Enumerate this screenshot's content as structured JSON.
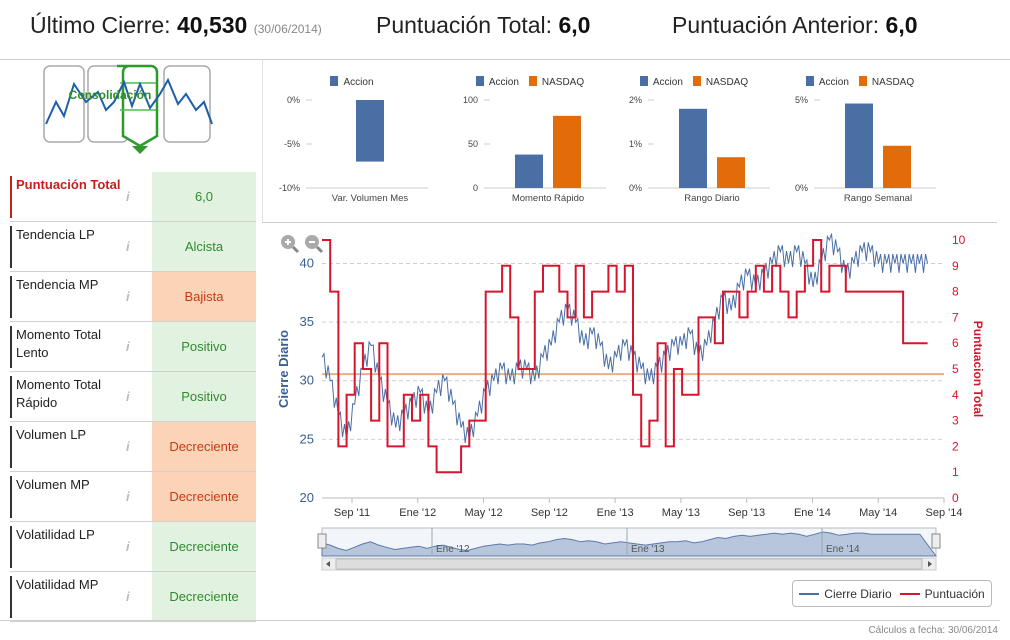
{
  "header": {
    "last_close_label": "Último Cierre:",
    "last_close_value": "40,530",
    "last_close_date": "(30/06/2014)",
    "total_score_label": "Puntuación Total:",
    "total_score_value": "6,0",
    "previous_score_label": "Puntuación Anterior:",
    "previous_score_value": "6,0"
  },
  "pattern": {
    "label": "Consolidación"
  },
  "info_icon": "i",
  "scores": [
    {
      "label": "Puntuación Total",
      "value": "6,0",
      "status": "green",
      "is_total": true
    },
    {
      "label": "Tendencia LP",
      "value": "Alcista",
      "status": "green"
    },
    {
      "label": "Tendencia MP",
      "value": "Bajista",
      "status": "orange"
    },
    {
      "label": "Momento Total Lento",
      "value": "Positivo",
      "status": "green"
    },
    {
      "label": "Momento Total Rápido",
      "value": "Positivo",
      "status": "green"
    },
    {
      "label": "Volumen LP",
      "value": "Decreciente",
      "status": "orange"
    },
    {
      "label": "Volumen MP",
      "value": "Decreciente",
      "status": "orange"
    },
    {
      "label": "Volatilidad LP",
      "value": "Decreciente",
      "status": "green"
    },
    {
      "label": "Volatilidad MP",
      "value": "Decreciente",
      "status": "green"
    }
  ],
  "colors": {
    "accion": "#4a6fa5",
    "nasdaq": "#e36c0a",
    "score": "#d6162c",
    "price": "#4a6fa5",
    "reference": "#e8b08a"
  },
  "chart_data": [
    {
      "type": "bar",
      "title": "",
      "xlabel": "Var. Volumen Mes",
      "legend": [
        "Accion"
      ],
      "categories": [
        "Accion"
      ],
      "values": [
        -7
      ],
      "ylim": [
        -10,
        0
      ],
      "yticks": [
        "0%",
        "-5%",
        "-10%"
      ]
    },
    {
      "type": "bar",
      "title": "",
      "xlabel": "Momento Rápido",
      "legend": [
        "Accion",
        "NASDAQ"
      ],
      "categories": [
        "Accion",
        "NASDAQ"
      ],
      "values": [
        38,
        82
      ],
      "ylim": [
        0,
        100
      ],
      "yticks": [
        "100",
        "50",
        "0"
      ]
    },
    {
      "type": "bar",
      "title": "",
      "xlabel": "Rango Diario",
      "legend": [
        "Accion",
        "NASDAQ"
      ],
      "categories": [
        "Accion",
        "NASDAQ"
      ],
      "values": [
        1.8,
        0.7
      ],
      "ylim": [
        0,
        2
      ],
      "yticks": [
        "2%",
        "1%",
        "0%"
      ]
    },
    {
      "type": "bar",
      "title": "",
      "xlabel": "Rango Semanal",
      "legend": [
        "Accion",
        "NASDAQ"
      ],
      "categories": [
        "Accion",
        "NASDAQ"
      ],
      "values": [
        4.8,
        2.4
      ],
      "ylim": [
        0,
        5
      ],
      "yticks": [
        "5%",
        "0%"
      ]
    },
    {
      "type": "line",
      "title": "",
      "ylabel": "Cierre Diario",
      "y2label": "Puntuacion Total",
      "x_ticks": [
        "Sep '11",
        "Ene '12",
        "May '12",
        "Sep '12",
        "Ene '13",
        "May '13",
        "Sep '13",
        "Ene '14",
        "May '14",
        "Sep '14"
      ],
      "navigator_ticks": [
        "Ene '12",
        "Ene '13",
        "Ene '14"
      ],
      "ylim": [
        20,
        42
      ],
      "yticks": [
        "20",
        "25",
        "30",
        "35",
        "40"
      ],
      "y2lim": [
        0,
        10
      ],
      "y2ticks": [
        "0",
        "1",
        "2",
        "3",
        "4",
        "5",
        "6",
        "7",
        "8",
        "9",
        "10"
      ],
      "reference_line": 4.8,
      "x_range_months": [
        0,
        38
      ],
      "series": [
        {
          "name": "Cierre Diario",
          "x": [
            0,
            0.5,
            1,
            1.5,
            2,
            2.5,
            3,
            3.5,
            4,
            4.5,
            5,
            5.5,
            6,
            6.5,
            7,
            7.5,
            8,
            8.5,
            9,
            9.5,
            10,
            10.5,
            11,
            11.5,
            12,
            12.5,
            13,
            13.5,
            14,
            14.5,
            15,
            15.5,
            16,
            16.5,
            17,
            17.5,
            18,
            18.5,
            19,
            19.5,
            20,
            20.5,
            21,
            21.5,
            22,
            22.5,
            23,
            23.5,
            24,
            24.5,
            25,
            25.5,
            26,
            26.5,
            27,
            27.5,
            28,
            28.5,
            29,
            29.5,
            30,
            30.5,
            31,
            31.5,
            32,
            32.5,
            33,
            33.5,
            34,
            34.5,
            35,
            35.5,
            36,
            36.5,
            37
          ],
          "values": [
            32,
            30,
            27,
            25,
            28,
            31,
            33,
            30,
            28,
            26,
            27,
            28,
            29,
            27,
            29,
            30,
            28,
            26,
            25,
            27,
            29,
            30,
            31,
            30,
            31,
            31,
            30,
            32,
            33,
            35,
            36,
            35,
            33,
            34,
            33,
            31,
            32,
            33,
            32,
            31,
            30,
            31,
            32,
            33,
            33,
            34,
            32,
            33,
            35,
            37,
            36,
            38,
            39,
            38,
            39,
            40,
            41,
            40,
            41,
            40,
            38,
            40,
            42,
            41,
            39,
            40,
            41,
            41,
            40,
            40,
            40,
            40,
            40,
            40,
            40
          ]
        },
        {
          "name": "Puntuación",
          "x": [
            0,
            0.5,
            1,
            1.5,
            2,
            2.5,
            3,
            3.5,
            4,
            4.5,
            5,
            5.5,
            6,
            6.5,
            7,
            7.5,
            8,
            8.5,
            9,
            9.5,
            10,
            10.5,
            11,
            11.5,
            12,
            12.5,
            13,
            13.5,
            14,
            14.5,
            15,
            15.5,
            16,
            16.5,
            17,
            17.5,
            18,
            18.5,
            19,
            19.5,
            20,
            20.5,
            21,
            21.5,
            22,
            22.5,
            23,
            23.5,
            24,
            24.5,
            25,
            25.5,
            26,
            26.5,
            27,
            27.5,
            28,
            28.5,
            29,
            29.5,
            30,
            30.5,
            31,
            31.5,
            32,
            32.5,
            33,
            33.5,
            34,
            34.5,
            35,
            35.5,
            36,
            36.5,
            37
          ],
          "values": [
            10,
            8,
            2,
            4,
            6,
            5,
            3,
            6,
            2,
            2,
            4,
            3,
            4,
            2,
            1,
            1,
            1,
            2,
            3,
            3,
            8,
            8,
            9,
            7,
            5,
            5,
            8,
            9,
            9,
            8,
            7,
            9,
            7,
            8,
            8,
            9,
            8,
            9,
            4,
            2,
            3,
            6,
            2,
            5,
            4,
            4,
            7,
            7,
            6,
            8,
            8,
            7,
            8,
            9,
            8,
            9,
            8,
            7,
            8,
            9,
            10,
            8,
            9,
            9,
            8,
            8,
            8,
            8,
            8,
            8,
            8,
            6,
            6,
            6,
            6
          ]
        }
      ]
    }
  ],
  "legend": {
    "price": "Cierre Diario",
    "score": "Puntuación"
  },
  "footer": {
    "text": "Cálculos a fecha: 30/06/2014"
  }
}
